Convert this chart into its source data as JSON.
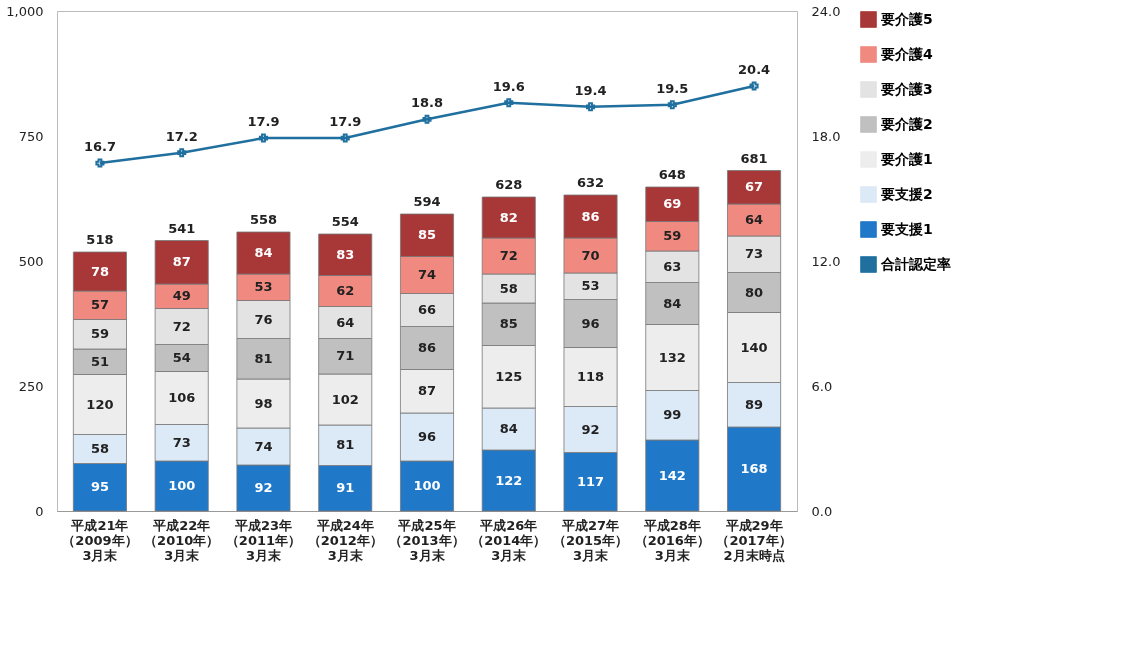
{
  "chart_data": {
    "type": "bar",
    "stacked": true,
    "categories": [
      "平成21年（2009年）3月末",
      "平成22年（2010年）3月末",
      "平成23年（2011年）3月末",
      "平成24年（2012年）3月末",
      "平成25年（2013年）3月末",
      "平成26年（2014年）3月末",
      "平成27年（2015年）3月末",
      "平成28年（2016年）3月末",
      "平成29年（2017年）2月末時点"
    ],
    "series": [
      {
        "name": "要支援1",
        "color": "#1f78c8",
        "values": [
          95,
          100,
          92,
          91,
          100,
          122,
          117,
          142,
          168
        ]
      },
      {
        "name": "要支援2",
        "color": "#dce9f6",
        "values": [
          58,
          73,
          74,
          81,
          96,
          84,
          92,
          99,
          89
        ]
      },
      {
        "name": "要介護1",
        "color": "#ededed",
        "values": [
          120,
          106,
          98,
          102,
          87,
          125,
          118,
          132,
          140
        ]
      },
      {
        "name": "要介護2",
        "color": "#c0c0c0",
        "values": [
          51,
          54,
          81,
          71,
          86,
          85,
          96,
          84,
          80
        ]
      },
      {
        "name": "要介護3",
        "color": "#e3e3e3",
        "values": [
          59,
          72,
          76,
          64,
          66,
          58,
          53,
          63,
          73
        ]
      },
      {
        "name": "要介護4",
        "color": "#f08a80",
        "values": [
          57,
          49,
          53,
          62,
          74,
          72,
          70,
          59,
          64
        ]
      },
      {
        "name": "要介護5",
        "color": "#a83838",
        "values": [
          78,
          87,
          84,
          83,
          85,
          82,
          86,
          69,
          67
        ]
      },
      {
        "name": "合計認定率",
        "type": "line",
        "axis": "y2",
        "color": "#1f6f9f",
        "marker": "cross",
        "values": [
          16.7,
          17.2,
          17.9,
          17.9,
          18.8,
          19.6,
          19.4,
          19.5,
          20.4
        ]
      }
    ],
    "totals": [
      "518",
      "541",
      "558",
      "554",
      "594",
      "628",
      "632",
      "648",
      "681"
    ],
    "data_labels": true,
    "ylim": [
      0,
      1000
    ],
    "yticks": [
      0,
      250,
      500,
      750,
      {
        "value": 1000,
        "label": "1,000"
      }
    ],
    "y2lim": [
      0,
      24
    ],
    "y2ticks": [
      {
        "value": 0,
        "label": "0.0"
      },
      {
        "value": 6,
        "label": "6.0"
      },
      {
        "value": 12,
        "label": "12.0"
      },
      {
        "value": 18,
        "label": "18.0"
      },
      {
        "value": 24,
        "label": "24.0"
      }
    ],
    "grid": false,
    "legend": "right"
  }
}
